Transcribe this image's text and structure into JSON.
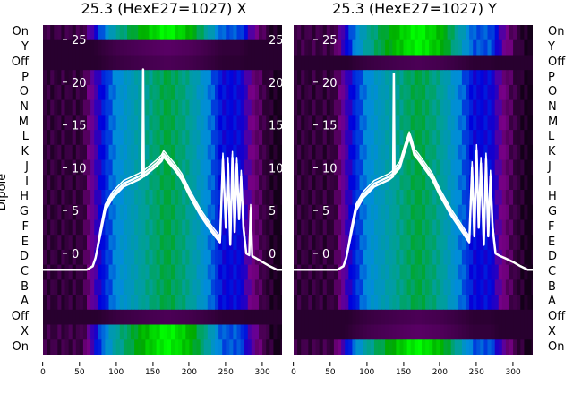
{
  "titles": [
    "25.3 (HexE27=1027) X",
    "25.3 (HexE27=1027) Y"
  ],
  "chart_data": {
    "type": "heatmap",
    "ylabel": "Dipole",
    "row_labels": [
      "On",
      "Y",
      "Off",
      "P",
      "O",
      "N",
      "M",
      "L",
      "K",
      "J",
      "I",
      "H",
      "G",
      "F",
      "E",
      "D",
      "C",
      "B",
      "A",
      "Off",
      "X",
      "On"
    ],
    "x_ticks": [
      "0",
      "50",
      "100",
      "150",
      "200",
      "250",
      "300"
    ],
    "x_range": [
      0,
      327
    ],
    "overlay_y_ticks": [
      "25",
      "20",
      "15",
      "10",
      "5",
      "0"
    ],
    "overlay_y_values": [
      25,
      20,
      15,
      10,
      5,
      0
    ],
    "colormap": "nipy_spectral",
    "column_profile": {
      "x": [
        0,
        55,
        65,
        80,
        100,
        140,
        170,
        200,
        225,
        245,
        270,
        285,
        305,
        320,
        330
      ],
      "v": [
        0.03,
        0.03,
        0.1,
        0.2,
        0.3,
        0.4,
        0.46,
        0.4,
        0.3,
        0.2,
        0.2,
        0.1,
        0.03,
        0.0,
        0.0
      ]
    },
    "panels": [
      {
        "row_scale": [
          1.3,
          0.15,
          0.12,
          1,
          1,
          1,
          1,
          1,
          1,
          1,
          1,
          1,
          1,
          1,
          1,
          1,
          1,
          1,
          1,
          0.12,
          1.3,
          1.3
        ],
        "trace": {
          "x": [
            0,
            40,
            60,
            68,
            72,
            78,
            85,
            95,
            110,
            130,
            136,
            137,
            138,
            145,
            155,
            162,
            165,
            170,
            180,
            190,
            200,
            215,
            230,
            242,
            246,
            250,
            253,
            256,
            259,
            262,
            265,
            268,
            271,
            274,
            278,
            282,
            284,
            286,
            290,
            300,
            310,
            320,
            327
          ],
          "y": [
            -1.9,
            -1.9,
            -1.9,
            -1.5,
            -0.5,
            2,
            5,
            6.5,
            7.8,
            8.6,
            8.9,
            21.5,
            9,
            9.5,
            10.2,
            10.8,
            11.3,
            10.8,
            9.8,
            8.6,
            6.8,
            4.5,
            2.6,
            1.3,
            11,
            3,
            10.5,
            1,
            11.2,
            2.5,
            10.5,
            4,
            9,
            3,
            0,
            -0.2,
            5,
            -0.3,
            -0.5,
            -1,
            -1.5,
            -1.9,
            -1.9
          ]
        }
      },
      {
        "row_scale": [
          1.3,
          1.3,
          0.12,
          1,
          1,
          1,
          1,
          1,
          1,
          1,
          1,
          1,
          1,
          1,
          1,
          1,
          1,
          1,
          1,
          0.12,
          0.15,
          1.3
        ],
        "trace": {
          "x": [
            0,
            40,
            60,
            68,
            72,
            78,
            85,
            95,
            110,
            130,
            136,
            137,
            138,
            145,
            152,
            158,
            162,
            165,
            170,
            180,
            190,
            200,
            215,
            230,
            240,
            244,
            247,
            250,
            253,
            256,
            260,
            263,
            266,
            269,
            272,
            276,
            282,
            290,
            300,
            310,
            320,
            327
          ],
          "y": [
            -1.9,
            -1.9,
            -1.9,
            -1.5,
            -0.5,
            2,
            5,
            6.5,
            7.8,
            8.6,
            9,
            21,
            9.3,
            10,
            12,
            13.5,
            12.5,
            11.5,
            11,
            9.8,
            8.6,
            6.8,
            4.5,
            2.6,
            1.3,
            10,
            2,
            12,
            3,
            10.5,
            1,
            11,
            2,
            9,
            3,
            0,
            -0.3,
            -0.6,
            -1,
            -1.5,
            -1.9,
            -1.9
          ]
        }
      }
    ]
  }
}
